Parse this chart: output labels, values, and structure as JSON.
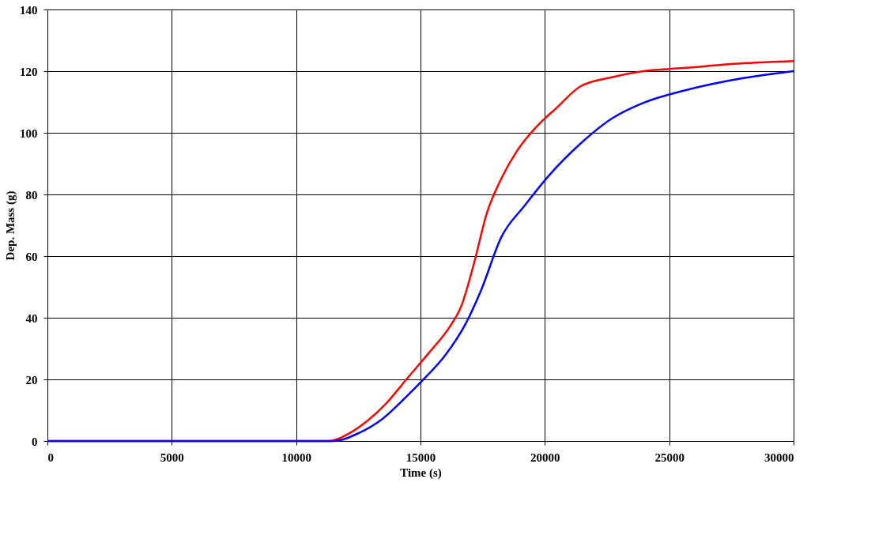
{
  "chart_data": {
    "type": "line",
    "xlabel": "Time (s)",
    "ylabel": "Dep. Mass (g)",
    "xlim": [
      0,
      30000
    ],
    "xticks": [
      0,
      5000,
      10000,
      15000,
      20000,
      25000,
      30000
    ],
    "ylim": [
      0,
      140
    ],
    "yticks": [
      0,
      20,
      40,
      60,
      80,
      100,
      120,
      140
    ],
    "grid": true,
    "legend": false,
    "marker": "none",
    "line_style": "solid",
    "series": [
      {
        "color": "#ff0000",
        "x": [
          0,
          11300,
          12200,
          12840,
          13630,
          14430,
          15380,
          16170,
          16650,
          17130,
          17670,
          18240,
          18870,
          19670,
          20460,
          21420,
          22690,
          23960,
          25550,
          28090,
          30000
        ],
        "values": [
          0,
          0,
          2.8,
          6.4,
          12.3,
          20,
          29,
          37,
          44,
          57,
          74,
          85,
          94,
          102,
          108,
          115,
          118,
          120,
          121,
          122.6,
          123.3
        ]
      },
      {
        "color": "#0000ff",
        "x": [
          0,
          11500,
          12520,
          13470,
          14430,
          15060,
          16010,
          16810,
          17440,
          18240,
          19190,
          20150,
          21420,
          22690,
          23960,
          25550,
          27450,
          30000
        ],
        "values": [
          0,
          0,
          2.6,
          7.2,
          14.4,
          19.5,
          28,
          38,
          49,
          66,
          76.4,
          86,
          96.4,
          104.6,
          109.7,
          113.6,
          117,
          120
        ]
      }
    ]
  }
}
